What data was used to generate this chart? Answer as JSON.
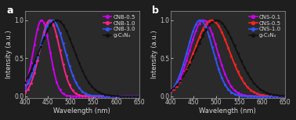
{
  "panel_a": {
    "label": "a",
    "xlabel": "Wavelength (nm)",
    "ylabel": "Intensity (a.u.)",
    "xlim": [
      400,
      650
    ],
    "ylim": [
      -0.02,
      1.12
    ],
    "yticks": [
      0.0,
      0.5,
      1.0
    ],
    "xticks": [
      400,
      450,
      500,
      550,
      600,
      650
    ],
    "series": [
      {
        "name": "CNB-0.5",
        "peak": 437,
        "sigma": 18,
        "amplitude": 1.0,
        "color": "#cc00ee",
        "lw": 1.4
      },
      {
        "name": "CNB-1.0",
        "peak": 455,
        "sigma": 22,
        "amplitude": 1.0,
        "color": "#ff2288",
        "lw": 1.4
      },
      {
        "name": "CNB-3.0",
        "peak": 460,
        "sigma": 28,
        "amplitude": 1.0,
        "color": "#3355ff",
        "lw": 1.4
      },
      {
        "name": "g-C₃N₄",
        "peak": 470,
        "sigma": 38,
        "amplitude": 1.0,
        "color": "#111111",
        "lw": 1.4
      }
    ]
  },
  "panel_b": {
    "label": "b",
    "xlabel": "Wavelength (nm)",
    "ylabel": "Intensity (a.u.)",
    "xlim": [
      400,
      650
    ],
    "ylim": [
      -0.02,
      1.12
    ],
    "yticks": [
      0.0,
      0.5,
      1.0
    ],
    "xticks": [
      400,
      450,
      500,
      550,
      600,
      650
    ],
    "series": [
      {
        "name": "CNS-0.1",
        "peak": 472,
        "sigma": 30,
        "amplitude": 1.0,
        "color": "#cc00ee",
        "lw": 1.4
      },
      {
        "name": "CNS-0.5",
        "peak": 490,
        "sigma": 38,
        "amplitude": 1.0,
        "color": "#ff2222",
        "lw": 1.4
      },
      {
        "name": "CNS-1.0",
        "peak": 465,
        "sigma": 28,
        "amplitude": 1.0,
        "color": "#3355ff",
        "lw": 1.4
      },
      {
        "name": "g-C₃N₄",
        "peak": 500,
        "sigma": 44,
        "amplitude": 1.0,
        "color": "#111111",
        "lw": 1.4
      }
    ]
  },
  "plot_bg": "#2a2a2a",
  "fig_bg": "#1e1e1e",
  "tick_color": "#cccccc",
  "label_color": "#dddddd",
  "spine_color": "#888888"
}
